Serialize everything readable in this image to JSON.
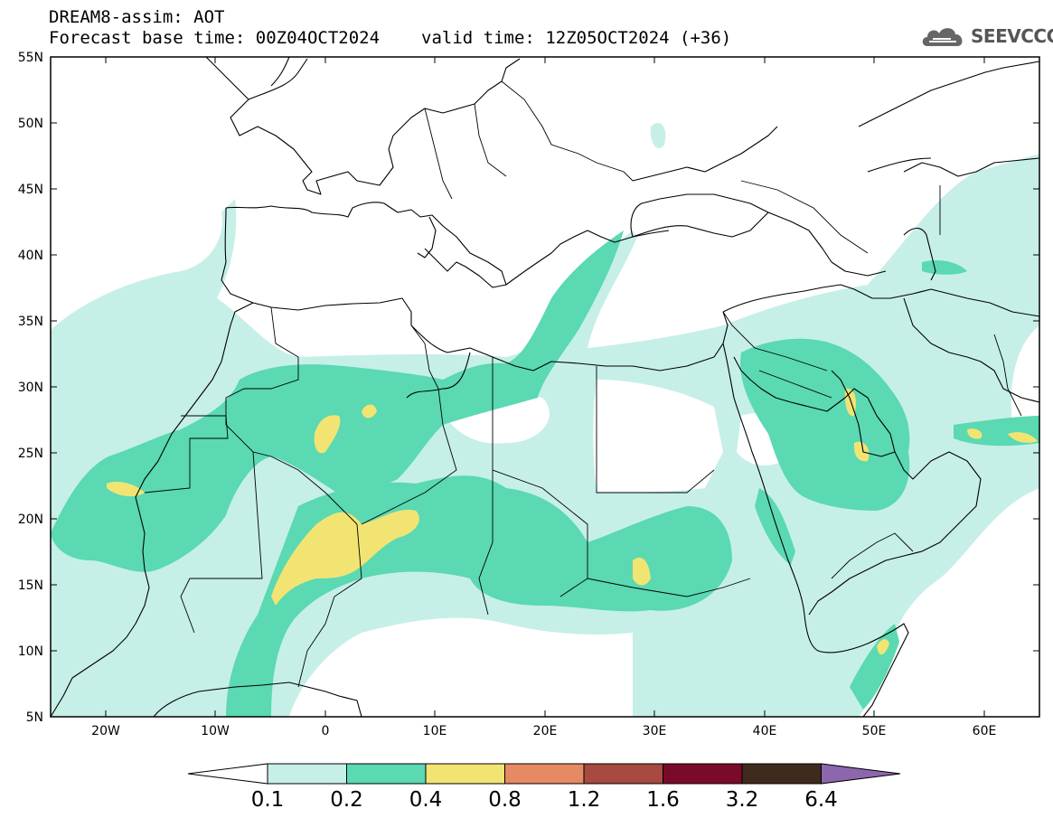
{
  "header": {
    "line1": "DREAM8-assim: AOT",
    "base_time": "Forecast base time: 00Z04OCT2024",
    "valid_time": "valid time: 12Z05OCT2024 (+36)"
  },
  "logo": {
    "text": "SEEVCCC",
    "icon": "cloud-icon"
  },
  "map": {
    "lat_ticks": [
      "55N",
      "50N",
      "45N",
      "40N",
      "35N",
      "30N",
      "25N",
      "20N",
      "15N",
      "10N",
      "5N"
    ],
    "lon_ticks": [
      "20W",
      "10W",
      "0",
      "10E",
      "20E",
      "30E",
      "40E",
      "50E",
      "60E"
    ]
  },
  "colorbar": {
    "labels": [
      "0.1",
      "0.2",
      "0.4",
      "0.8",
      "1.2",
      "1.6",
      "3.2",
      "6.4"
    ],
    "colors": [
      "#ffffff",
      "#c6efe8",
      "#5ad9b2",
      "#f2e473",
      "#e58a64",
      "#a74a3f",
      "#7a0a2a",
      "#3f2a1e",
      "#8c67ad"
    ]
  }
}
